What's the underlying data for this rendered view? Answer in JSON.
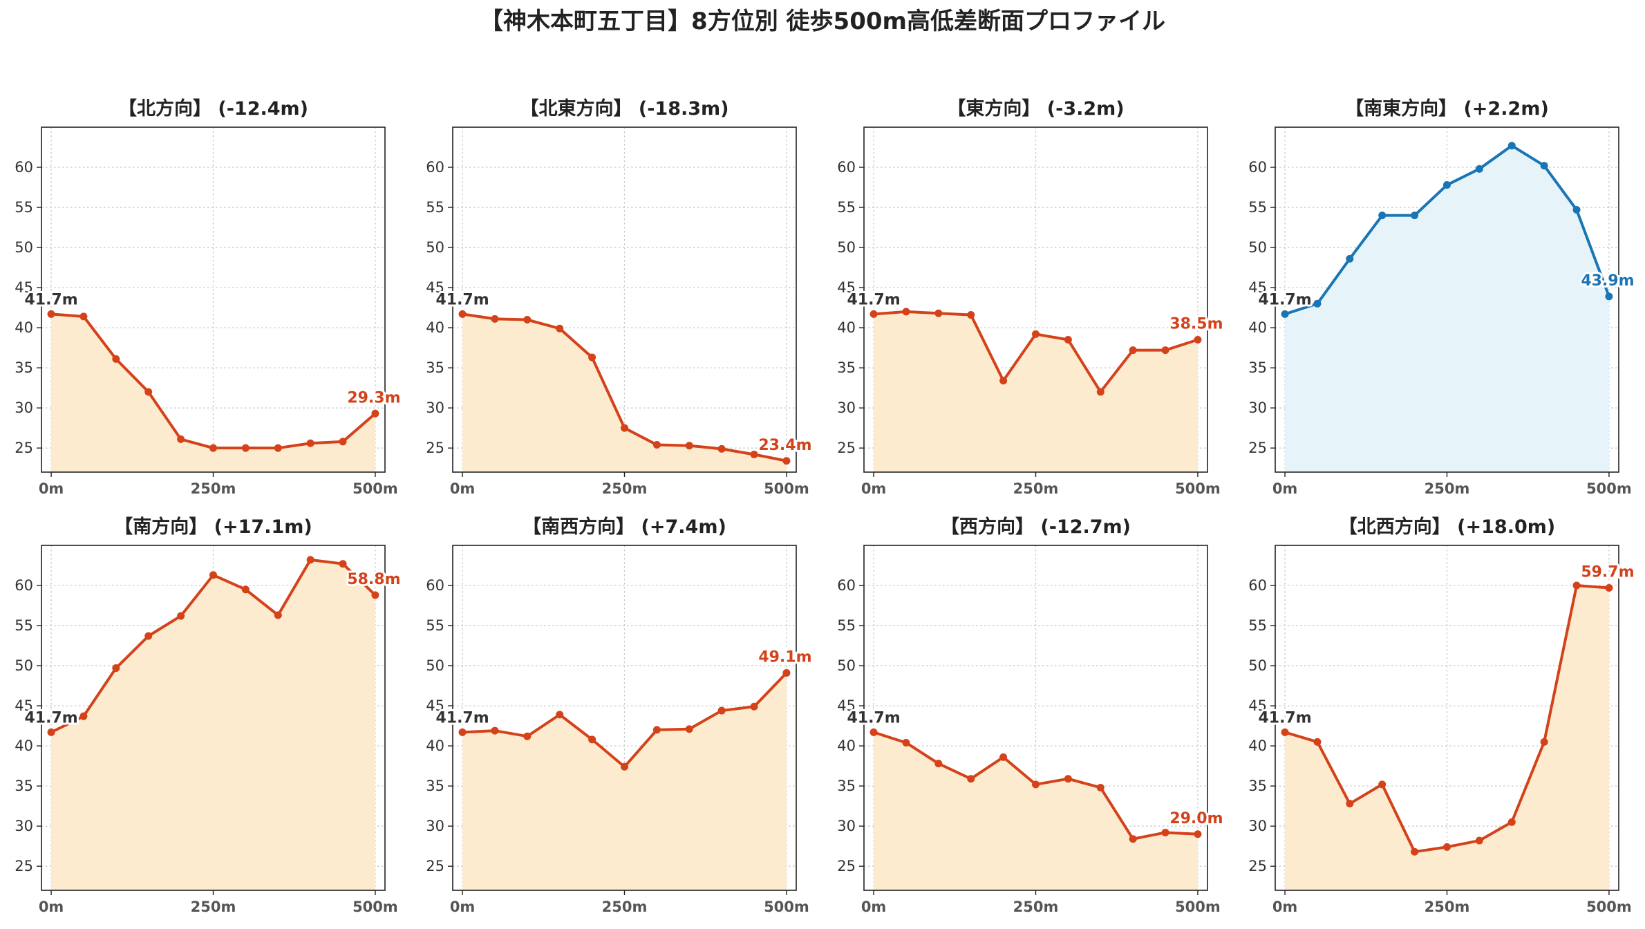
{
  "page": {
    "title": "【神木本町五丁目】8方位別 徒歩500m高低差断面プロファイル"
  },
  "colors": {
    "down_line": "#d4421a",
    "down_fill": "#fdebd0",
    "up_line": "#1a75b4",
    "up_fill": "#e6f4fa",
    "grid": "#c8c8c8",
    "start_label": "#333333"
  },
  "chart_data": [
    {
      "type": "area",
      "title": "【北方向】 (-12.4m)",
      "x": [
        0,
        50,
        100,
        150,
        200,
        250,
        300,
        350,
        400,
        450,
        500
      ],
      "values": [
        41.7,
        41.4,
        36.1,
        32.0,
        26.1,
        25.0,
        25.0,
        25.0,
        25.6,
        25.8,
        29.3
      ],
      "start_label": "41.7m",
      "end_label": "29.3m",
      "color_scheme": "down",
      "xticks": [
        "0m",
        "250m",
        "500m"
      ],
      "yticks": [
        "25",
        "30",
        "35",
        "40",
        "45",
        "50",
        "55",
        "60"
      ],
      "ylim": [
        22,
        65
      ],
      "grid": true
    },
    {
      "type": "area",
      "title": "【北東方向】 (-18.3m)",
      "x": [
        0,
        50,
        100,
        150,
        200,
        250,
        300,
        350,
        400,
        450,
        500
      ],
      "values": [
        41.7,
        41.1,
        41.0,
        39.9,
        36.3,
        27.5,
        25.4,
        25.3,
        24.9,
        24.2,
        23.4
      ],
      "start_label": "41.7m",
      "end_label": "23.4m",
      "color_scheme": "down",
      "xticks": [
        "0m",
        "250m",
        "500m"
      ],
      "yticks": [
        "25",
        "30",
        "35",
        "40",
        "45",
        "50",
        "55",
        "60"
      ],
      "ylim": [
        22,
        65
      ],
      "grid": true
    },
    {
      "type": "area",
      "title": "【東方向】 (-3.2m)",
      "x": [
        0,
        50,
        100,
        150,
        200,
        250,
        300,
        350,
        400,
        450,
        500
      ],
      "values": [
        41.7,
        42.0,
        41.8,
        41.6,
        33.4,
        39.2,
        38.5,
        32.0,
        37.2,
        37.2,
        38.5
      ],
      "start_label": "41.7m",
      "end_label": "38.5m",
      "color_scheme": "down",
      "xticks": [
        "0m",
        "250m",
        "500m"
      ],
      "yticks": [
        "25",
        "30",
        "35",
        "40",
        "45",
        "50",
        "55",
        "60"
      ],
      "ylim": [
        22,
        65
      ],
      "grid": true
    },
    {
      "type": "area",
      "title": "【南東方向】 (+2.2m)",
      "x": [
        0,
        50,
        100,
        150,
        200,
        250,
        300,
        350,
        400,
        450,
        500
      ],
      "values": [
        41.7,
        43.0,
        48.6,
        54.0,
        54.0,
        57.8,
        59.8,
        62.7,
        60.2,
        54.7,
        43.9
      ],
      "start_label": "41.7m",
      "end_label": "43.9m",
      "color_scheme": "up",
      "xticks": [
        "0m",
        "250m",
        "500m"
      ],
      "yticks": [
        "25",
        "30",
        "35",
        "40",
        "45",
        "50",
        "55",
        "60"
      ],
      "ylim": [
        22,
        65
      ],
      "grid": true
    },
    {
      "type": "area",
      "title": "【南方向】 (+17.1m)",
      "x": [
        0,
        50,
        100,
        150,
        200,
        250,
        300,
        350,
        400,
        450,
        500
      ],
      "values": [
        41.7,
        43.7,
        49.7,
        53.7,
        56.2,
        61.3,
        59.5,
        56.3,
        63.2,
        62.7,
        58.8
      ],
      "start_label": "41.7m",
      "end_label": "58.8m",
      "color_scheme": "down",
      "xticks": [
        "0m",
        "250m",
        "500m"
      ],
      "yticks": [
        "25",
        "30",
        "35",
        "40",
        "45",
        "50",
        "55",
        "60"
      ],
      "ylim": [
        22,
        65
      ],
      "grid": true
    },
    {
      "type": "area",
      "title": "【南西方向】 (+7.4m)",
      "x": [
        0,
        50,
        100,
        150,
        200,
        250,
        300,
        350,
        400,
        450,
        500
      ],
      "values": [
        41.7,
        41.9,
        41.2,
        43.9,
        40.8,
        37.4,
        42.0,
        42.1,
        44.4,
        44.9,
        49.1
      ],
      "start_label": "41.7m",
      "end_label": "49.1m",
      "color_scheme": "down",
      "xticks": [
        "0m",
        "250m",
        "500m"
      ],
      "yticks": [
        "25",
        "30",
        "35",
        "40",
        "45",
        "50",
        "55",
        "60"
      ],
      "ylim": [
        22,
        65
      ],
      "grid": true
    },
    {
      "type": "area",
      "title": "【西方向】 (-12.7m)",
      "x": [
        0,
        50,
        100,
        150,
        200,
        250,
        300,
        350,
        400,
        450,
        500
      ],
      "values": [
        41.7,
        40.4,
        37.8,
        35.9,
        38.6,
        35.2,
        35.9,
        34.8,
        28.4,
        29.2,
        29.0
      ],
      "start_label": "41.7m",
      "end_label": "29.0m",
      "color_scheme": "down",
      "xticks": [
        "0m",
        "250m",
        "500m"
      ],
      "yticks": [
        "25",
        "30",
        "35",
        "40",
        "45",
        "50",
        "55",
        "60"
      ],
      "ylim": [
        22,
        65
      ],
      "grid": true
    },
    {
      "type": "area",
      "title": "【北西方向】 (+18.0m)",
      "x": [
        0,
        50,
        100,
        150,
        200,
        250,
        300,
        350,
        400,
        450,
        500
      ],
      "values": [
        41.7,
        40.5,
        32.8,
        35.2,
        26.8,
        27.4,
        28.2,
        30.5,
        40.5,
        60.0,
        59.7
      ],
      "start_label": "41.7m",
      "end_label": "59.7m",
      "color_scheme": "down",
      "xticks": [
        "0m",
        "250m",
        "500m"
      ],
      "yticks": [
        "25",
        "30",
        "35",
        "40",
        "45",
        "50",
        "55",
        "60"
      ],
      "ylim": [
        22,
        65
      ],
      "grid": true
    }
  ]
}
